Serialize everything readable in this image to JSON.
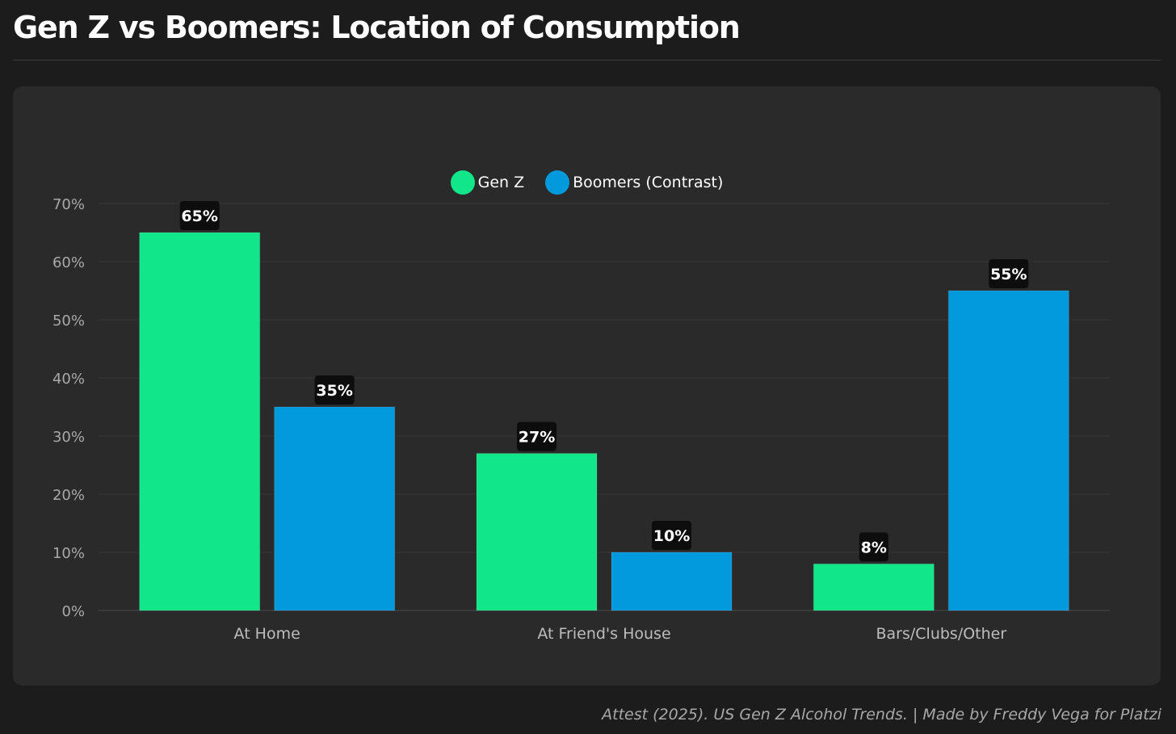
{
  "page": {
    "title": "Gen Z vs Boomers: Location of Consumption",
    "source": "Attest (2025). US Gen Z Alcohol Trends. | Made by Freddy Vega for Platzi"
  },
  "colors": {
    "background": "#1c1c1c",
    "card": "#2a2a2a",
    "gen_z": "#12e68a",
    "boomers": "#0399dd"
  },
  "chart_data": {
    "type": "bar",
    "title": "",
    "xlabel": "",
    "ylabel": "",
    "categories": [
      "At Home",
      "At Friend's House",
      "Bars/Clubs/Other"
    ],
    "series": [
      {
        "name": "Gen Z",
        "values": [
          65,
          27,
          8
        ],
        "color": "#12e68a",
        "icon": "circle-swatch"
      },
      {
        "name": "Boomers (Contrast)",
        "values": [
          35,
          10,
          55
        ],
        "color": "#0399dd",
        "icon": "circle-swatch"
      }
    ],
    "ylim": [
      0,
      70
    ],
    "yticks": [
      0,
      10,
      20,
      30,
      40,
      50,
      60,
      70
    ],
    "tick_suffix": "%",
    "data_label_suffix": "%",
    "grid": true,
    "legend": "top-center"
  }
}
